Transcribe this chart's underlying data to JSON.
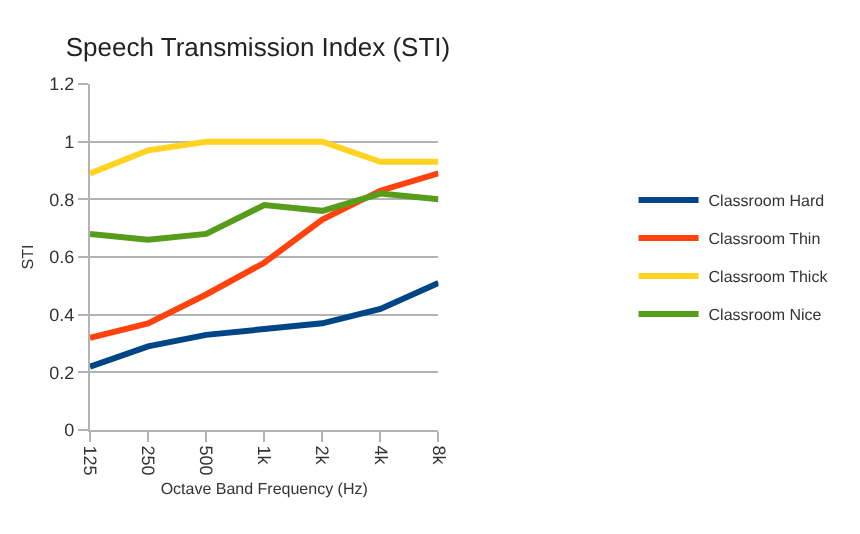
{
  "chart_data": {
    "type": "line",
    "title": "Speech Transmission Index (STI)",
    "xlabel": "Octave Band Frequency (Hz)",
    "ylabel": "STI",
    "categories": [
      "125",
      "250",
      "500",
      "1k",
      "2k",
      "4k",
      "8k"
    ],
    "series": [
      {
        "name": "Classroom Hard",
        "color": "#004586",
        "values": [
          0.22,
          0.29,
          0.33,
          0.35,
          0.37,
          0.42,
          0.51
        ]
      },
      {
        "name": "Classroom Thin",
        "color": "#ff420e",
        "values": [
          0.32,
          0.37,
          0.47,
          0.58,
          0.73,
          0.83,
          0.89
        ]
      },
      {
        "name": "Classroom Thick",
        "color": "#ffd320",
        "values": [
          0.89,
          0.97,
          1.0,
          1.0,
          1.0,
          0.93,
          0.93
        ]
      },
      {
        "name": "Classroom Nice",
        "color": "#579d1c",
        "values": [
          0.68,
          0.66,
          0.68,
          0.78,
          0.76,
          0.82,
          0.8
        ]
      }
    ],
    "ylim": [
      0,
      1.2
    ],
    "yticks": [
      0,
      0.2,
      0.4,
      0.6,
      0.8,
      1,
      1.2
    ],
    "grid": "y",
    "legend": "right",
    "marker": "none",
    "line_style": "solid"
  }
}
